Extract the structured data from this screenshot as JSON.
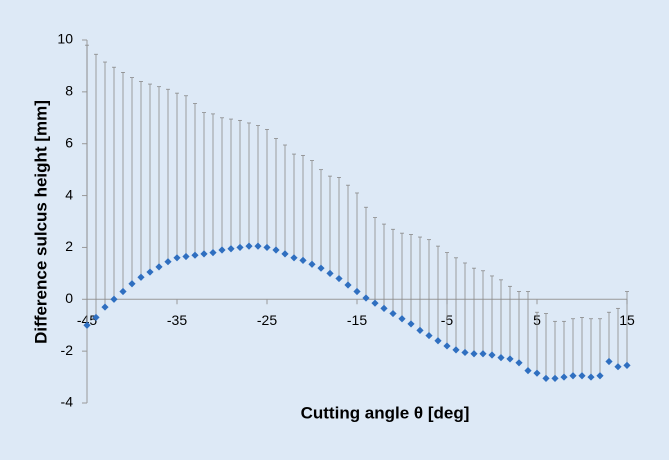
{
  "chart_data": {
    "type": "scatter",
    "x_label": "Cutting angle θ [deg]",
    "y_label": "Difference sulcus height [mm]",
    "xlim": [
      -45,
      15
    ],
    "xticks": [
      -45,
      -35,
      -25,
      -15,
      -5,
      5,
      15
    ],
    "ylim": [
      -4,
      10
    ],
    "yticks": [
      -4,
      -2,
      0,
      2,
      4,
      6,
      8,
      10
    ],
    "series": [
      {
        "color": "#2f6fc0",
        "error_color": "#8a8a8a",
        "x": [
          -45,
          -44,
          -43,
          -42,
          -41,
          -40,
          -39,
          -38,
          -37,
          -36,
          -35,
          -34,
          -33,
          -32,
          -31,
          -30,
          -29,
          -28,
          -27,
          -26,
          -25,
          -24,
          -23,
          -22,
          -21,
          -20,
          -19,
          -18,
          -17,
          -16,
          -15,
          -14,
          -13,
          -12,
          -11,
          -10,
          -9,
          -8,
          -7,
          -6,
          -5,
          -4,
          -3,
          -2,
          -1,
          0,
          1,
          2,
          3,
          4,
          5,
          6,
          7,
          8,
          9,
          10,
          11,
          12,
          13,
          14,
          15
        ],
        "values": [
          -1.0,
          -0.7,
          -0.3,
          0.0,
          0.3,
          0.6,
          0.85,
          1.05,
          1.25,
          1.45,
          1.6,
          1.65,
          1.7,
          1.75,
          1.8,
          1.9,
          1.95,
          2.0,
          2.05,
          2.05,
          2.0,
          1.9,
          1.75,
          1.6,
          1.5,
          1.35,
          1.2,
          1.0,
          0.8,
          0.55,
          0.3,
          0.05,
          -0.15,
          -0.35,
          -0.55,
          -0.75,
          -0.95,
          -1.2,
          -1.4,
          -1.6,
          -1.8,
          -1.95,
          -2.05,
          -2.1,
          -2.1,
          -2.15,
          -2.25,
          -2.3,
          -2.45,
          -2.75,
          -2.85,
          -3.05,
          -3.05,
          -3.0,
          -2.95,
          -2.95,
          -3.0,
          -2.95,
          -2.4,
          -2.6,
          -2.55
        ],
        "errors_upper": [
          10.8,
          10.15,
          9.45,
          8.95,
          8.45,
          7.95,
          7.55,
          7.25,
          6.95,
          6.65,
          6.35,
          6.2,
          5.85,
          5.45,
          5.35,
          5.1,
          5.0,
          4.9,
          4.75,
          4.65,
          4.55,
          4.3,
          4.2,
          4.0,
          4.05,
          4.0,
          3.8,
          3.75,
          3.9,
          3.85,
          3.8,
          3.5,
          3.3,
          3.25,
          3.25,
          3.3,
          3.45,
          3.6,
          3.7,
          3.65,
          3.6,
          3.55,
          3.45,
          3.3,
          3.2,
          3.05,
          3.0,
          2.8,
          2.75,
          3.05,
          2.35,
          2.5,
          2.2,
          2.15,
          2.2,
          2.25,
          2.25,
          2.2,
          1.9,
          2.25,
          2.85
        ]
      }
    ]
  }
}
